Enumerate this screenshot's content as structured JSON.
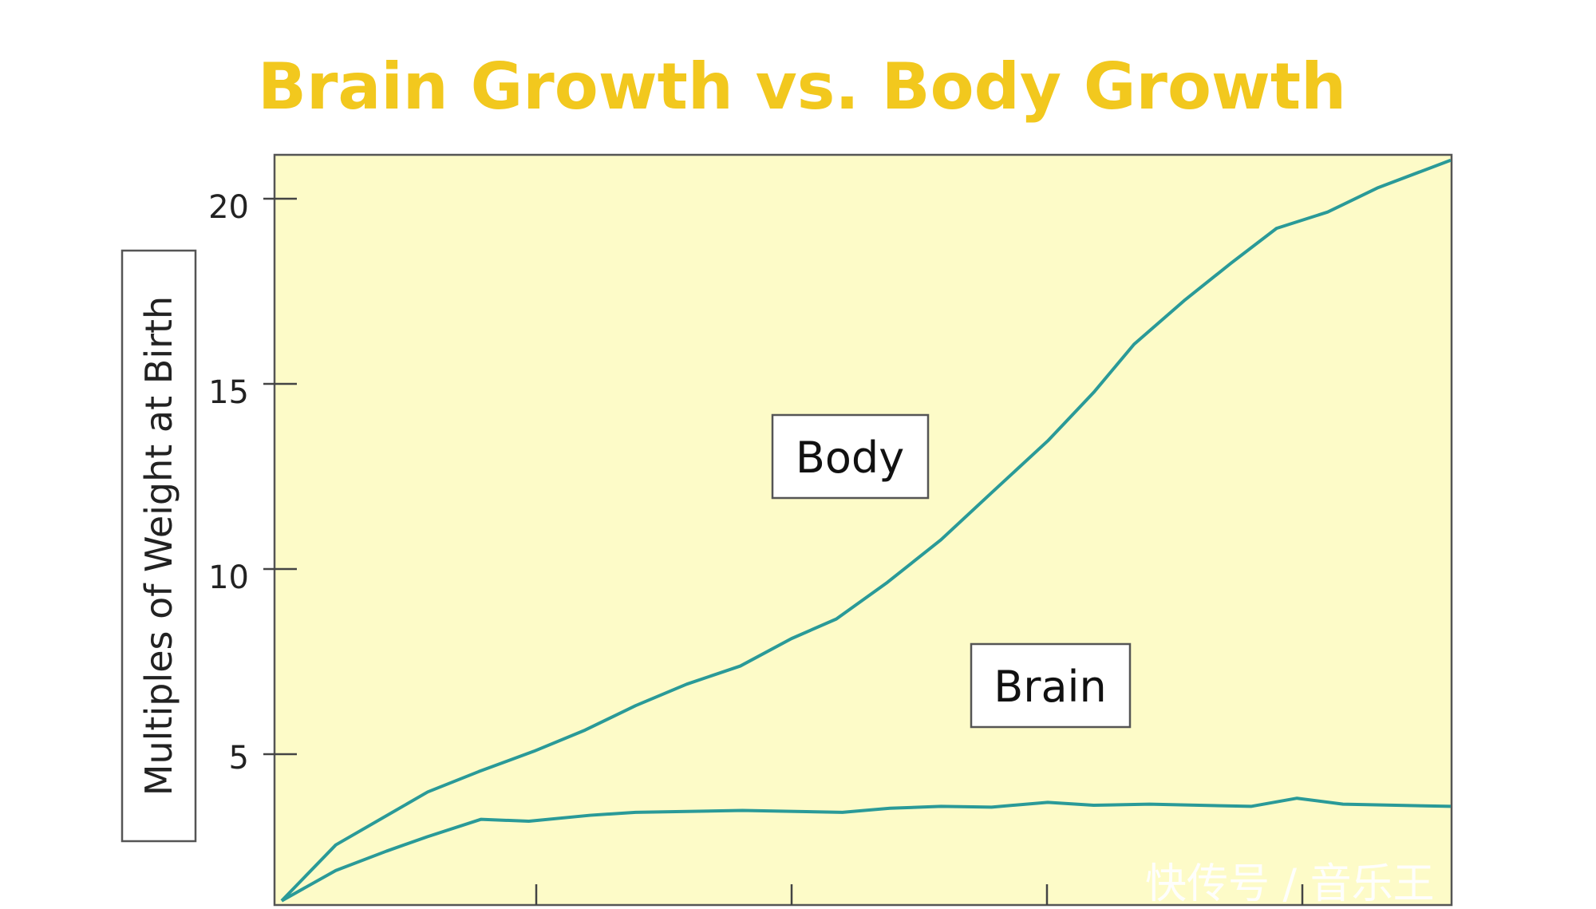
{
  "chart_data": {
    "type": "line",
    "title": "Brain Growth vs. Body Growth",
    "xlabel": "",
    "ylabel": "Multiples of Weight at Birth",
    "xlim": [
      0,
      23
    ],
    "ylim": [
      1,
      21.2
    ],
    "x_ticks": [
      5,
      10,
      15,
      20
    ],
    "y_ticks": [
      5,
      10,
      15,
      20
    ],
    "y_tick_labels": [
      "5",
      "10",
      "15",
      "20"
    ],
    "grid": false,
    "series": [
      {
        "name": "Body",
        "color": "#2a9a98",
        "x": [
          0.14,
          1.2,
          3.0,
          4.0,
          5.08,
          6.08,
          7.07,
          8.07,
          9.12,
          10.12,
          11.0,
          12.0,
          13.05,
          14.04,
          15.14,
          16.04,
          16.83,
          17.83,
          18.73,
          19.62,
          20.62,
          21.61,
          23.03
        ],
        "y": [
          1.04,
          2.55,
          3.98,
          4.53,
          5.08,
          5.65,
          6.31,
          6.89,
          7.38,
          8.12,
          8.65,
          9.64,
          10.79,
          12.06,
          13.46,
          14.77,
          16.07,
          17.27,
          18.26,
          19.2,
          19.64,
          20.3,
          21.04
        ]
      },
      {
        "name": "Brain",
        "color": "#2a9a98",
        "x": [
          0.14,
          1.2,
          2.19,
          2.99,
          4.04,
          4.98,
          6.18,
          7.07,
          9.16,
          11.12,
          12.05,
          13.05,
          14.04,
          15.14,
          16.04,
          17.13,
          19.12,
          20.02,
          20.92,
          23.03
        ],
        "y": [
          1.04,
          1.86,
          2.38,
          2.77,
          3.24,
          3.19,
          3.35,
          3.43,
          3.48,
          3.43,
          3.54,
          3.59,
          3.57,
          3.7,
          3.62,
          3.65,
          3.59,
          3.81,
          3.65,
          3.59
        ]
      }
    ],
    "annotations": [
      "Body",
      "Brain"
    ]
  },
  "colors": {
    "title": "#f2c81e",
    "plot_bg": "#fdfbc8",
    "line": "#2a9a98"
  },
  "watermark": "快传号 / 音乐王"
}
